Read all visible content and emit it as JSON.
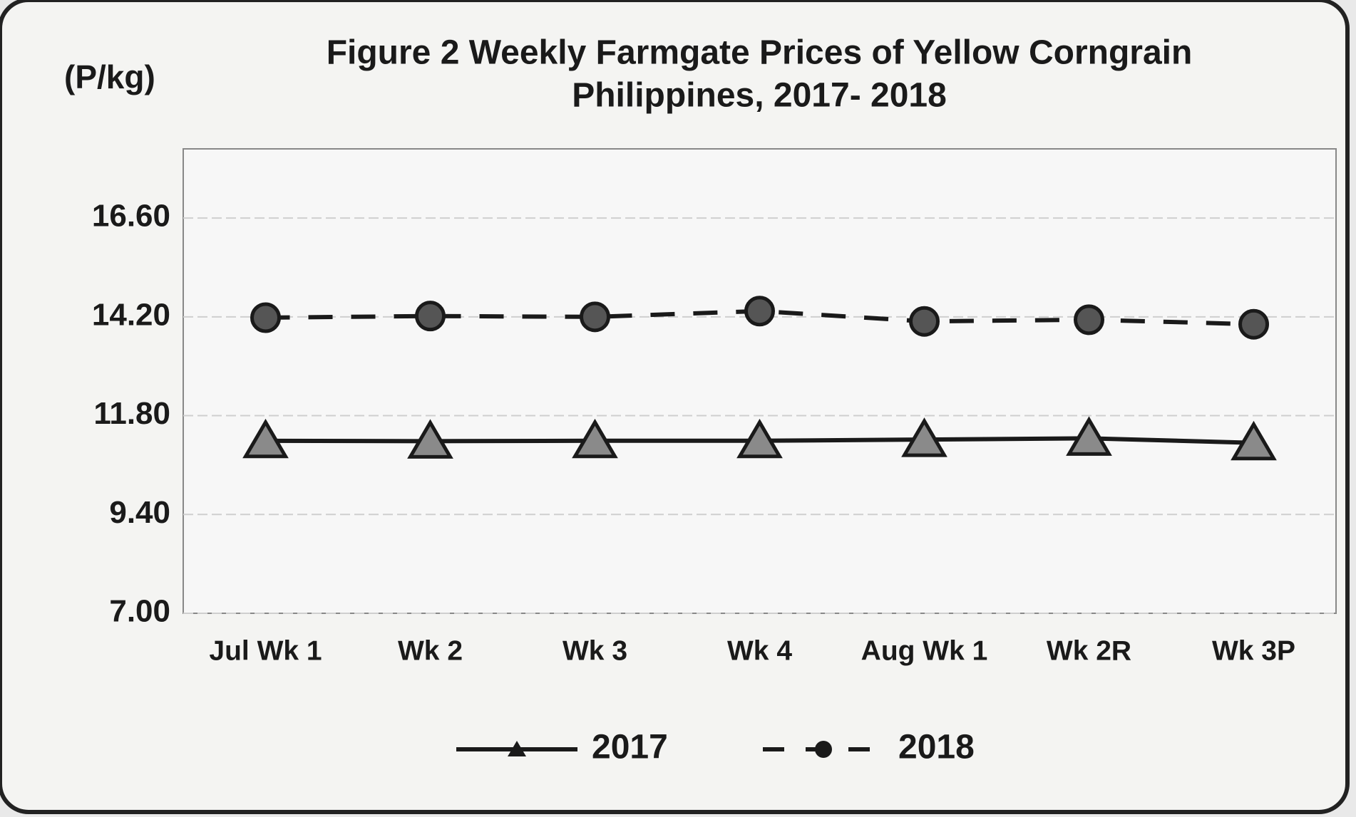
{
  "chart_data": {
    "type": "line",
    "title": [
      "Figure 2  Weekly Farmgate Prices of Yellow Corngrain",
      "Philippines, 2017- 2018"
    ],
    "y_label": "(P/kg)",
    "categories": [
      "Jul Wk 1",
      "Wk 2",
      "Wk 3",
      "Wk 4",
      "Aug Wk 1",
      "Wk 2R",
      "Wk 3P"
    ],
    "series": [
      {
        "name": "2017",
        "color": "#1a1a1a",
        "marker": "triangle",
        "dash": false,
        "values": [
          11.19,
          11.18,
          11.19,
          11.19,
          11.22,
          11.25,
          11.14
        ]
      },
      {
        "name": "2018",
        "color": "#1a1a1a",
        "marker": "circle",
        "dash": true,
        "values": [
          14.18,
          14.22,
          14.2,
          14.34,
          14.09,
          14.13,
          14.02
        ]
      }
    ],
    "ylim": [
      7,
      18.28
    ],
    "yticks": [
      {
        "value": 7,
        "label": "7.00"
      },
      {
        "value": 9.4,
        "label": "9.40"
      },
      {
        "value": 11.8,
        "label": "11.80"
      },
      {
        "value": 14.2,
        "label": "14.20"
      },
      {
        "value": 16.6,
        "label": "16.60"
      }
    ],
    "grid": true,
    "legend": "bottom"
  }
}
